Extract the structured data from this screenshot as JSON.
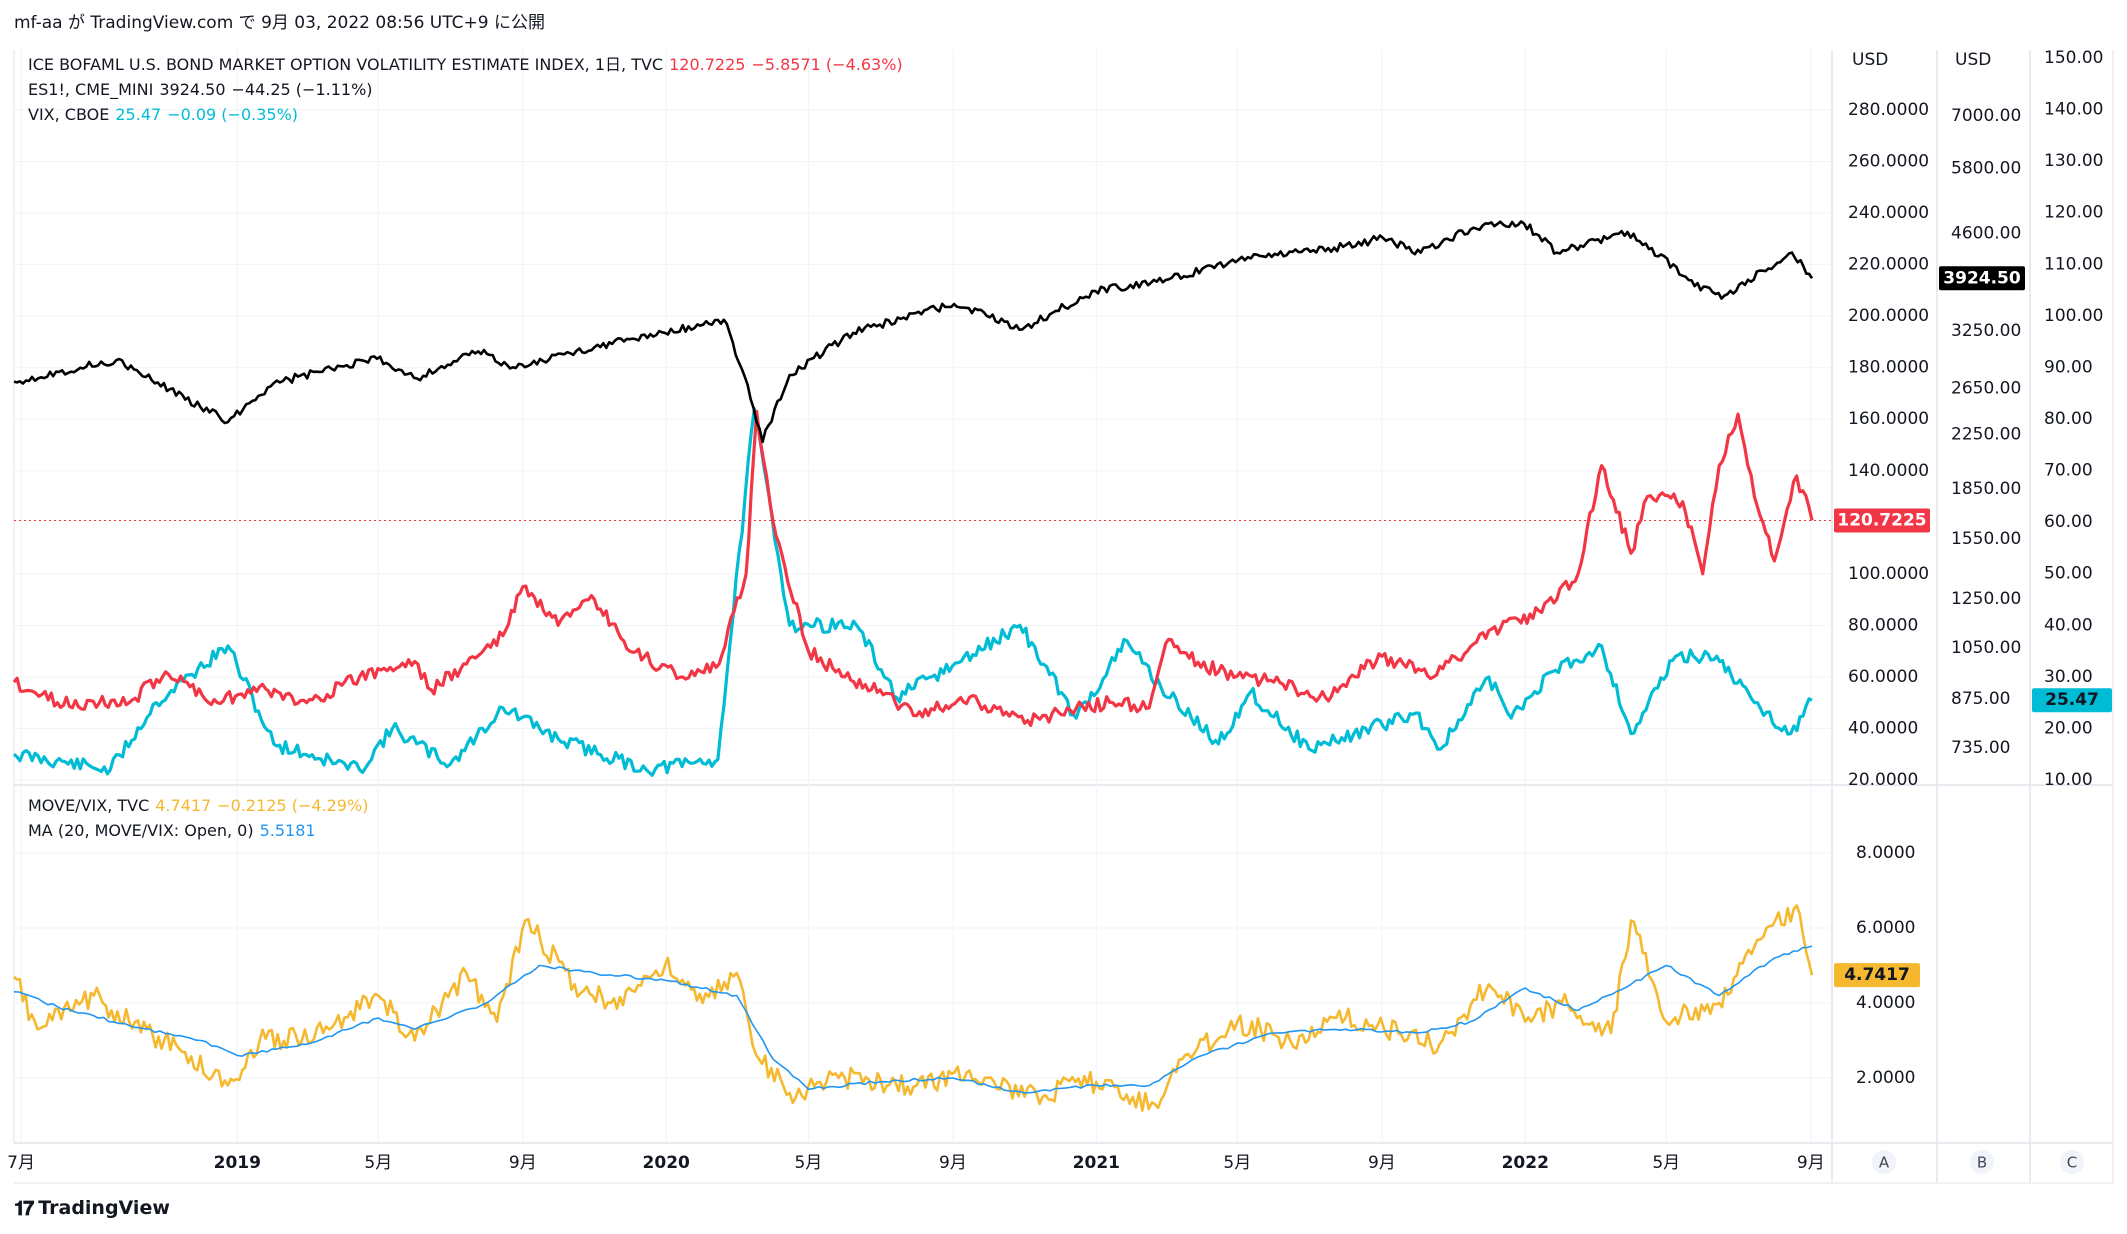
{
  "header": {
    "text": "mf-aa が TradingView.com で 9月 03, 2022 08:56 UTC+9 に公開"
  },
  "footer": {
    "logo_text": "TradingView"
  },
  "legend_top": [
    {
      "name": "ICE BOFAML U.S. BOND MARKET OPTION VOLATILITY ESTIMATE INDEX, 1日, TVC",
      "last": "120.7225",
      "change": "−5.8571 (−4.63%)",
      "color": "#f23645"
    },
    {
      "name": "ES1!, CME_MINI",
      "last": "3924.50",
      "change": "−44.25 (−1.11%)",
      "color": "#131722"
    },
    {
      "name": "VIX, CBOE",
      "last": "25.47",
      "change": "−0.09 (−0.35%)",
      "color": "#00bcd4"
    }
  ],
  "legend_bottom": [
    {
      "name": "MOVE/VIX, TVC",
      "last": "4.7417",
      "change": "−0.2125 (−4.29%)",
      "color": "#f5b82e"
    },
    {
      "name": "MA (20, MOVE/VIX: Open, 0)",
      "last": "5.5181",
      "change": "",
      "color": "#2196f3"
    }
  ],
  "axes": {
    "scale_A": {
      "unit": "USD",
      "ticks": [
        "280.0000",
        "260.0000",
        "240.0000",
        "220.0000",
        "200.0000",
        "180.0000",
        "160.0000",
        "140.0000",
        "100.0000",
        "80.0000",
        "60.0000",
        "40.0000",
        "20.0000"
      ],
      "last_badge": "120.7225",
      "badge_color": "#f23645"
    },
    "scale_B": {
      "unit": "USD",
      "ticks": [
        "7000.00",
        "5800.00",
        "4600.00",
        "3250.00",
        "2650.00",
        "2250.00",
        "1850.00",
        "1550.00",
        "1250.00",
        "1050.00",
        "875.00",
        "735.00"
      ],
      "last_badge": "3924.50",
      "badge_color": "#000000"
    },
    "scale_C": {
      "ticks": [
        "150.00",
        "140.00",
        "130.00",
        "120.00",
        "110.00",
        "100.00",
        "90.00",
        "80.00",
        "70.00",
        "60.00",
        "50.00",
        "40.00",
        "30.00",
        "20.00",
        "10.00"
      ],
      "last_badge": "25.47",
      "badge_color": "#00bcd4"
    },
    "scale_lower": {
      "ticks": [
        "8.0000",
        "6.0000",
        "4.0000",
        "2.0000"
      ],
      "last_badge": "4.7417",
      "badge_color": "#f5b82e"
    },
    "x_ticks": [
      {
        "label": "7月",
        "bold": false
      },
      {
        "label": "2019",
        "bold": true
      },
      {
        "label": "5月",
        "bold": false
      },
      {
        "label": "9月",
        "bold": false
      },
      {
        "label": "2020",
        "bold": true
      },
      {
        "label": "5月",
        "bold": false
      },
      {
        "label": "9月",
        "bold": false
      },
      {
        "label": "2021",
        "bold": true
      },
      {
        "label": "5月",
        "bold": false
      },
      {
        "label": "9月",
        "bold": false
      },
      {
        "label": "2022",
        "bold": true
      },
      {
        "label": "5月",
        "bold": false
      },
      {
        "label": "9月",
        "bold": false
      }
    ],
    "scale_buttons": [
      "A",
      "B",
      "C"
    ]
  },
  "chart_data": [
    {
      "type": "line",
      "x_range": [
        "2018-06-25",
        "2022-09-02"
      ],
      "series": [
        {
          "name": "ICE BOFAML U.S. BOND MARKET OPTION VOLATILITY ESTIMATE INDEX",
          "scale": "A",
          "color": "#f23645",
          "points": [
            [
              "2018-06-25",
              58
            ],
            [
              "2018-08-01",
              50
            ],
            [
              "2018-10-01",
              50
            ],
            [
              "2018-11-01",
              62
            ],
            [
              "2018-12-15",
              50
            ],
            [
              "2019-01-15",
              56
            ],
            [
              "2019-03-01",
              50
            ],
            [
              "2019-04-15",
              60
            ],
            [
              "2019-06-01",
              66
            ],
            [
              "2019-06-15",
              55
            ],
            [
              "2019-07-15",
              65
            ],
            [
              "2019-08-15",
              76
            ],
            [
              "2019-09-01",
              95
            ],
            [
              "2019-10-01",
              80
            ],
            [
              "2019-11-01",
              90
            ],
            [
              "2019-12-01",
              70
            ],
            [
              "2020-01-15",
              60
            ],
            [
              "2020-02-15",
              65
            ],
            [
              "2020-03-09",
              100
            ],
            [
              "2020-03-18",
              163
            ],
            [
              "2020-04-01",
              120
            ],
            [
              "2020-05-01",
              70
            ],
            [
              "2020-06-01",
              60
            ],
            [
              "2020-07-01",
              55
            ],
            [
              "2020-08-01",
              45
            ],
            [
              "2020-09-15",
              52
            ],
            [
              "2020-11-01",
              42
            ],
            [
              "2020-12-15",
              48
            ],
            [
              "2021-01-15",
              50
            ],
            [
              "2021-02-15",
              48
            ],
            [
              "2021-03-01",
              73
            ],
            [
              "2021-04-15",
              62
            ],
            [
              "2021-06-01",
              58
            ],
            [
              "2021-07-15",
              52
            ],
            [
              "2021-09-01",
              68
            ],
            [
              "2021-10-15",
              60
            ],
            [
              "2021-12-01",
              78
            ],
            [
              "2022-01-15",
              85
            ],
            [
              "2022-02-15",
              100
            ],
            [
              "2022-03-07",
              142
            ],
            [
              "2022-04-01",
              108
            ],
            [
              "2022-04-15",
              130
            ],
            [
              "2022-05-15",
              128
            ],
            [
              "2022-06-01",
              100
            ],
            [
              "2022-06-15",
              142
            ],
            [
              "2022-07-01",
              162
            ],
            [
              "2022-07-15",
              130
            ],
            [
              "2022-08-01",
              105
            ],
            [
              "2022-08-20",
              138
            ],
            [
              "2022-09-02",
              120.7225
            ]
          ]
        },
        {
          "name": "ES1!, CME_MINI",
          "scale": "B",
          "color": "#000000",
          "points": [
            [
              "2018-06-25",
              2715
            ],
            [
              "2018-09-20",
              2930
            ],
            [
              "2018-10-15",
              2760
            ],
            [
              "2018-12-24",
              2350
            ],
            [
              "2019-02-01",
              2700
            ],
            [
              "2019-04-30",
              2945
            ],
            [
              "2019-06-03",
              2745
            ],
            [
              "2019-07-25",
              3025
            ],
            [
              "2019-08-26",
              2850
            ],
            [
              "2019-11-01",
              3070
            ],
            [
              "2019-12-31",
              3230
            ],
            [
              "2020-02-19",
              3385
            ],
            [
              "2020-03-23",
              2190
            ],
            [
              "2020-04-15",
              2780
            ],
            [
              "2020-06-08",
              3230
            ],
            [
              "2020-09-02",
              3580
            ],
            [
              "2020-10-30",
              3270
            ],
            [
              "2020-12-31",
              3750
            ],
            [
              "2021-03-01",
              3900
            ],
            [
              "2021-05-10",
              4230
            ],
            [
              "2021-07-30",
              4390
            ],
            [
              "2021-09-02",
              4530
            ],
            [
              "2021-10-04",
              4300
            ],
            [
              "2021-11-18",
              4700
            ],
            [
              "2021-12-31",
              4770
            ],
            [
              "2022-01-28",
              4300
            ],
            [
              "2022-03-29",
              4630
            ],
            [
              "2022-05-20",
              3900
            ],
            [
              "2022-06-17",
              3650
            ],
            [
              "2022-08-16",
              4300
            ],
            [
              "2022-09-02",
              3924.5
            ]
          ]
        },
        {
          "name": "VIX, CBOE",
          "scale": "C",
          "color": "#00bcd4",
          "points": [
            [
              "2018-06-25",
              15
            ],
            [
              "2018-09-15",
              12
            ],
            [
              "2018-10-24",
              25
            ],
            [
              "2018-12-24",
              36
            ],
            [
              "2019-02-01",
              17
            ],
            [
              "2019-04-15",
              12
            ],
            [
              "2019-05-13",
              20
            ],
            [
              "2019-07-01",
              13
            ],
            [
              "2019-08-15",
              24
            ],
            [
              "2019-10-01",
              18
            ],
            [
              "2019-12-15",
              12
            ],
            [
              "2020-02-14",
              14
            ],
            [
              "2020-03-16",
              82
            ],
            [
              "2020-04-15",
              40
            ],
            [
              "2020-06-11",
              40
            ],
            [
              "2020-07-15",
              26
            ],
            [
              "2020-09-08",
              33
            ],
            [
              "2020-10-28",
              40
            ],
            [
              "2020-12-15",
              22
            ],
            [
              "2021-01-27",
              37
            ],
            [
              "2021-02-25",
              28
            ],
            [
              "2021-04-15",
              17
            ],
            [
              "2021-05-12",
              27
            ],
            [
              "2021-07-01",
              16
            ],
            [
              "2021-09-30",
              23
            ],
            [
              "2021-10-21",
              16
            ],
            [
              "2021-12-01",
              30
            ],
            [
              "2021-12-20",
              22
            ],
            [
              "2022-01-24",
              31
            ],
            [
              "2022-03-07",
              36
            ],
            [
              "2022-04-01",
              19
            ],
            [
              "2022-05-09",
              34
            ],
            [
              "2022-06-13",
              34
            ],
            [
              "2022-07-15",
              25
            ],
            [
              "2022-08-15",
              19
            ],
            [
              "2022-09-02",
              25.47
            ]
          ]
        }
      ]
    },
    {
      "type": "line",
      "x_range": [
        "2018-06-25",
        "2022-09-02"
      ],
      "series": [
        {
          "name": "MOVE/VIX, TVC",
          "color": "#f5b82e",
          "points": [
            [
              "2018-06-25",
              4.7
            ],
            [
              "2018-07-15",
              3.3
            ],
            [
              "2018-09-01",
              4.2
            ],
            [
              "2018-10-01",
              3.5
            ],
            [
              "2018-11-15",
              2.7
            ],
            [
              "2018-12-24",
              1.8
            ],
            [
              "2019-01-20",
              3.0
            ],
            [
              "2019-03-15",
              3.2
            ],
            [
              "2019-05-01",
              4.2
            ],
            [
              "2019-06-01",
              3.0
            ],
            [
              "2019-07-15",
              4.8
            ],
            [
              "2019-08-10",
              3.5
            ],
            [
              "2019-09-03",
              6.2
            ],
            [
              "2019-10-15",
              4.5
            ],
            [
              "2019-11-15",
              4.0
            ],
            [
              "2019-12-31",
              5.0
            ],
            [
              "2020-02-01",
              4.0
            ],
            [
              "2020-03-01",
              4.8
            ],
            [
              "2020-03-20",
              2.5
            ],
            [
              "2020-04-15",
              1.6
            ],
            [
              "2020-06-01",
              2.0
            ],
            [
              "2020-08-01",
              1.8
            ],
            [
              "2020-09-15",
              2.2
            ],
            [
              "2020-11-01",
              1.5
            ],
            [
              "2021-01-01",
              1.9
            ],
            [
              "2021-02-01",
              1.5
            ],
            [
              "2021-02-20",
              1.3
            ],
            [
              "2021-03-15",
              2.5
            ],
            [
              "2021-05-01",
              3.5
            ],
            [
              "2021-06-15",
              3.0
            ],
            [
              "2021-08-01",
              3.6
            ],
            [
              "2021-09-15",
              3.2
            ],
            [
              "2021-10-20",
              2.9
            ],
            [
              "2021-12-01",
              4.5
            ],
            [
              "2022-01-01",
              3.5
            ],
            [
              "2022-02-01",
              4.0
            ],
            [
              "2022-03-15",
              3.2
            ],
            [
              "2022-04-01",
              6.2
            ],
            [
              "2022-05-01",
              3.5
            ],
            [
              "2022-06-15",
              4.0
            ],
            [
              "2022-07-15",
              5.5
            ],
            [
              "2022-08-20",
              6.6
            ],
            [
              "2022-09-02",
              4.7417
            ]
          ]
        },
        {
          "name": "MA (20, MOVE/VIX: Open, 0)",
          "color": "#2196f3",
          "points": [
            [
              "2018-06-25",
              4.3
            ],
            [
              "2018-08-01",
              3.9
            ],
            [
              "2018-10-01",
              3.4
            ],
            [
              "2018-12-01",
              3.0
            ],
            [
              "2019-01-01",
              2.6
            ],
            [
              "2019-03-01",
              2.9
            ],
            [
              "2019-05-01",
              3.6
            ],
            [
              "2019-06-01",
              3.3
            ],
            [
              "2019-08-01",
              4.0
            ],
            [
              "2019-09-15",
              5.0
            ],
            [
              "2019-11-01",
              4.8
            ],
            [
              "2020-01-01",
              4.6
            ],
            [
              "2020-03-01",
              4.2
            ],
            [
              "2020-04-01",
              2.5
            ],
            [
              "2020-05-01",
              1.7
            ],
            [
              "2020-07-01",
              1.9
            ],
            [
              "2020-09-01",
              2.0
            ],
            [
              "2020-11-01",
              1.6
            ],
            [
              "2021-01-01",
              1.8
            ],
            [
              "2021-02-15",
              1.8
            ],
            [
              "2021-04-01",
              2.6
            ],
            [
              "2021-06-01",
              3.2
            ],
            [
              "2021-08-01",
              3.3
            ],
            [
              "2021-10-01",
              3.2
            ],
            [
              "2021-11-15",
              3.5
            ],
            [
              "2022-01-01",
              4.4
            ],
            [
              "2022-02-15",
              3.8
            ],
            [
              "2022-04-01",
              4.5
            ],
            [
              "2022-05-01",
              5.0
            ],
            [
              "2022-06-15",
              4.2
            ],
            [
              "2022-08-01",
              5.2
            ],
            [
              "2022-09-02",
              5.5181
            ]
          ]
        }
      ]
    }
  ]
}
